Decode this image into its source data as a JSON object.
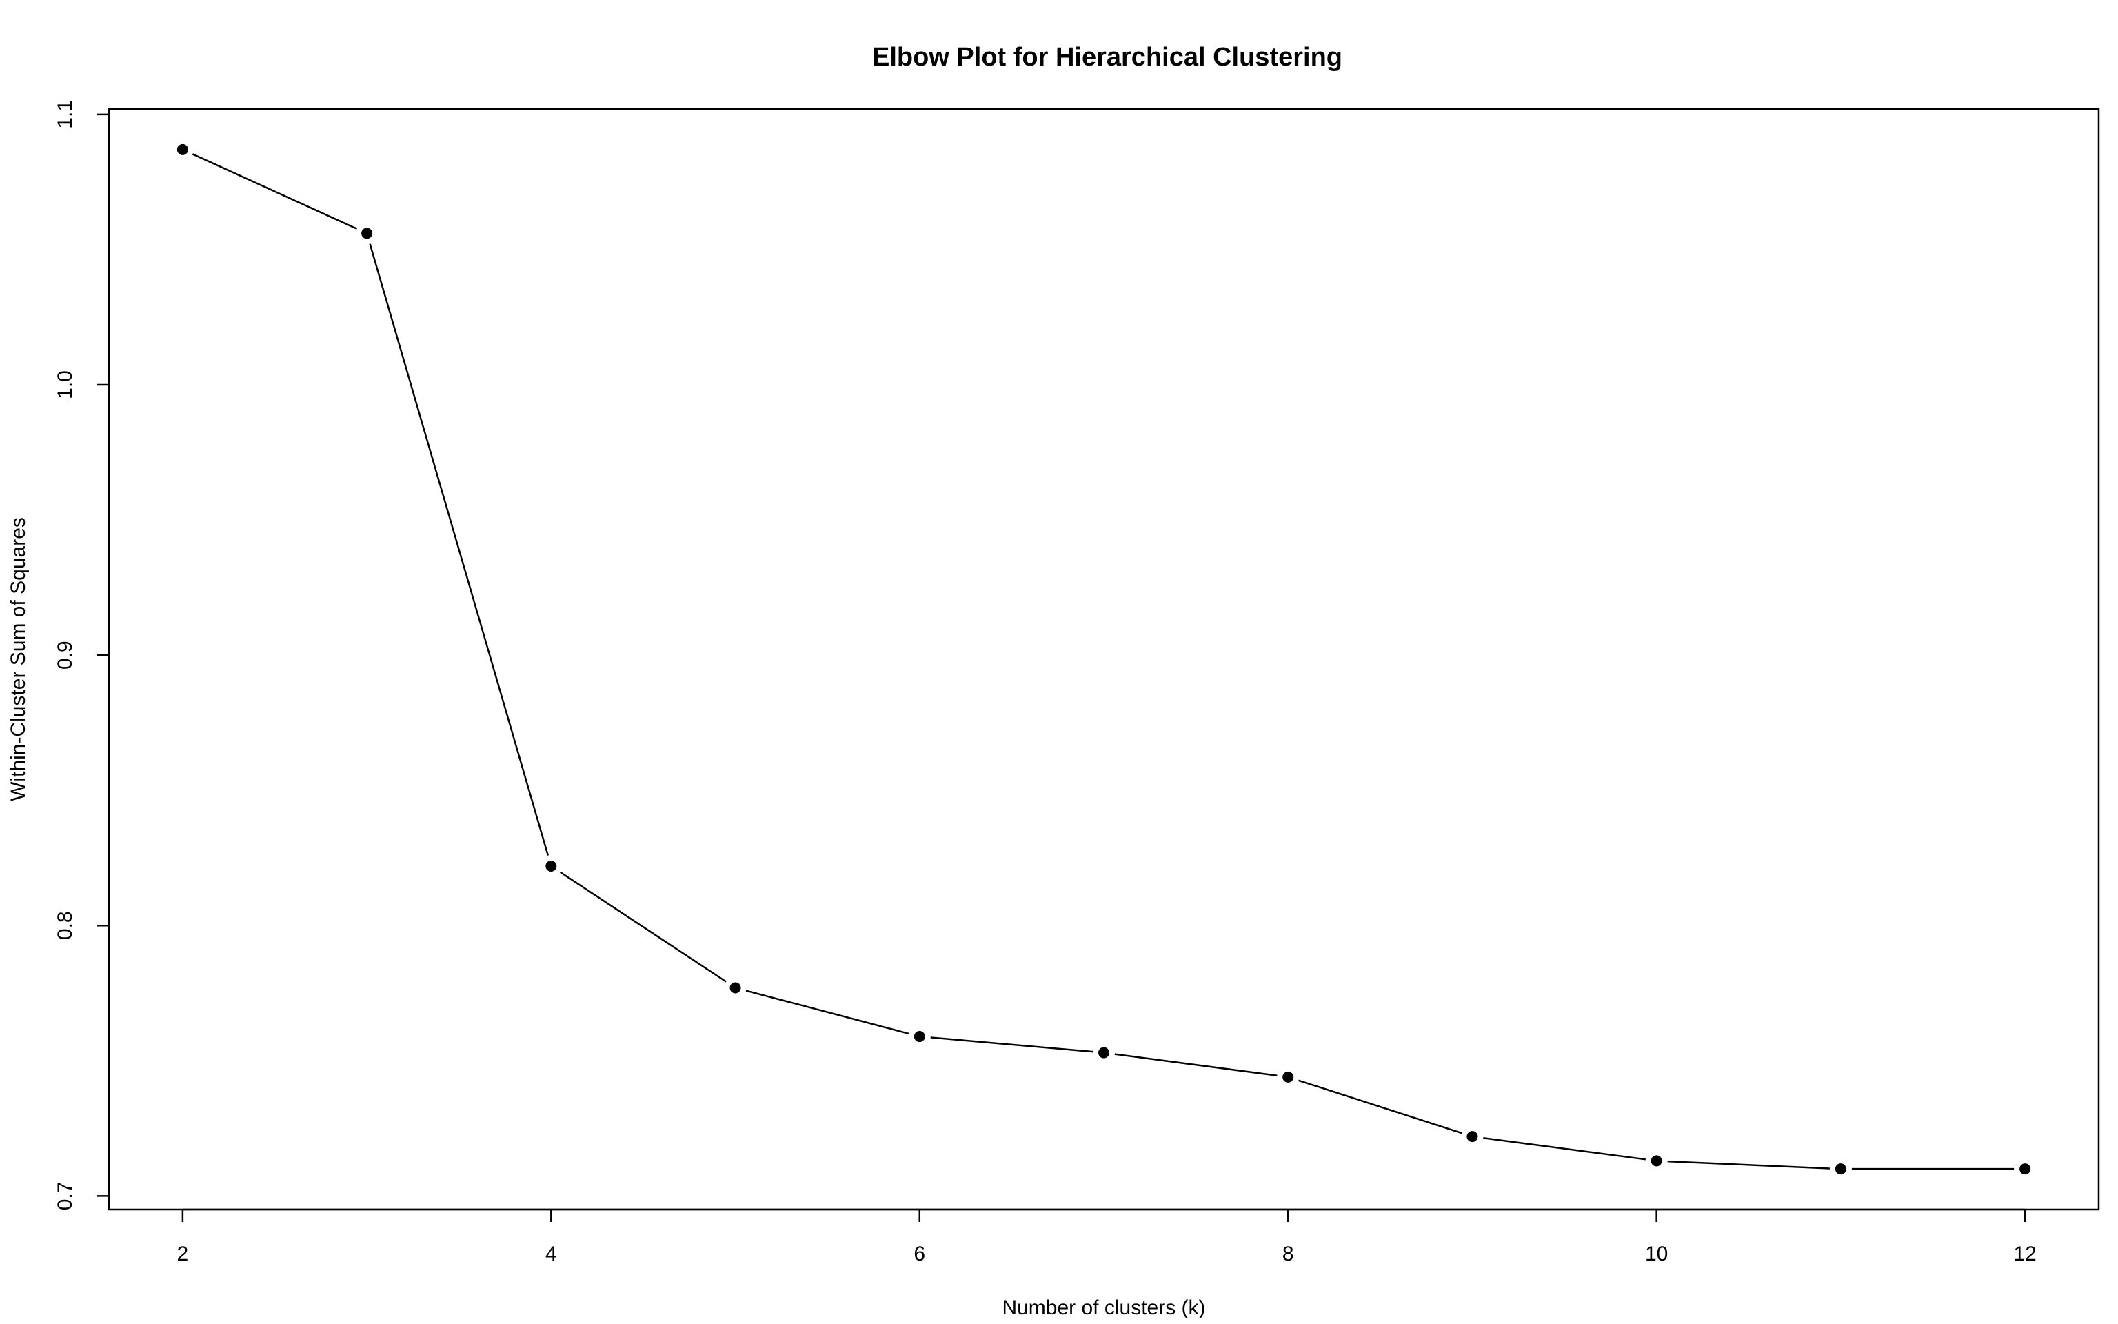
{
  "chart_data": {
    "type": "line",
    "title": "Elbow Plot for Hierarchical Clustering",
    "xlabel": "Number of clusters (k)",
    "ylabel": "Within-Cluster Sum of Squares",
    "x": [
      2,
      3,
      4,
      5,
      6,
      7,
      8,
      9,
      10,
      11,
      12
    ],
    "series": [
      {
        "values": [
          1.087,
          1.056,
          0.822,
          0.777,
          0.759,
          0.753,
          0.744,
          0.722,
          0.713,
          0.71,
          0.71
        ]
      }
    ],
    "xlim": [
      1.6,
      12.4
    ],
    "ylim": [
      0.695,
      1.102
    ],
    "xticks": [
      2,
      4,
      6,
      8,
      10,
      12
    ],
    "xtick_labels": [
      "2",
      "4",
      "6",
      "8",
      "10",
      "12"
    ],
    "yticks": [
      0.7,
      0.8,
      0.9,
      1.0,
      1.1
    ],
    "ytick_labels": [
      "0.7",
      "0.8",
      "0.9",
      "1.0",
      "1.1"
    ],
    "grid": false,
    "legend": "none",
    "marker": "filled-circle",
    "line_color": "#000000",
    "marker_color": "#000000"
  }
}
